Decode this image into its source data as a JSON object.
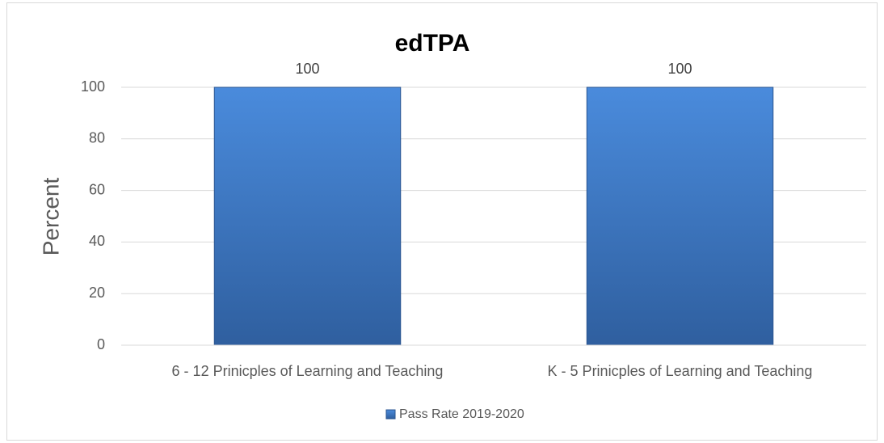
{
  "chart_data": {
    "type": "bar",
    "title": "edTPA",
    "y_label": "Percent",
    "categories": [
      "6 - 12 Prinicples of Learning and Teaching",
      "K - 5 Prinicples of Learning and Teaching"
    ],
    "series": [
      {
        "name": "Pass Rate 2019-2020",
        "color": "#3a75c4",
        "values": [
          100,
          100
        ]
      }
    ],
    "ylim": [
      0,
      100
    ],
    "yticks": [
      0,
      20,
      40,
      60,
      80,
      100
    ],
    "grid": true,
    "legend": "bottom"
  }
}
